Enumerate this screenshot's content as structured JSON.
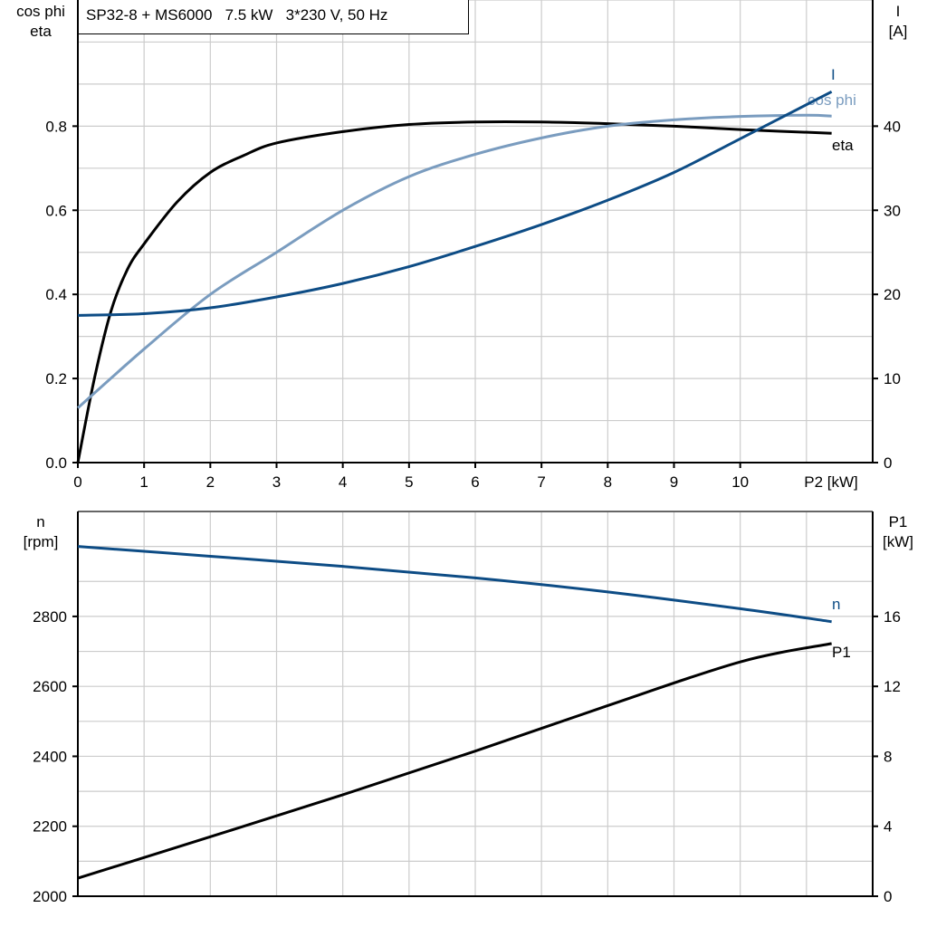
{
  "colors": {
    "eta": "#000000",
    "cos_phi": "#7a9cbf",
    "I": "#0d4c85",
    "n": "#0d4c85",
    "P1": "#000000",
    "grid": "#cccccc"
  },
  "chart_data": [
    {
      "type": "line",
      "title": "SP32-8 + MS6000   7.5 kW   3*230 V, 50 Hz",
      "xlabel": "P2 [kW]",
      "ylabel_left": [
        "cos phi",
        "eta"
      ],
      "ylabel_right": [
        "I",
        "[A]"
      ],
      "xlim": [
        0,
        12
      ],
      "ylim_left": [
        0,
        1.1
      ],
      "ylim_right": [
        0,
        55
      ],
      "grid": true,
      "x_ticks": [
        "0",
        "1",
        "2",
        "3",
        "4",
        "5",
        "6",
        "7",
        "8",
        "9",
        "10"
      ],
      "y_left_ticks": [
        "0.0",
        "0.2",
        "0.4",
        "0.6",
        "0.8"
      ],
      "y_right_ticks": [
        "0",
        "10",
        "20",
        "30",
        "40"
      ],
      "series": [
        {
          "name": "eta",
          "axis": "left",
          "x": [
            0,
            0.25,
            0.5,
            0.75,
            1,
            1.5,
            2,
            2.5,
            3,
            4,
            5,
            6,
            7,
            8,
            9,
            10,
            11.38
          ],
          "y": [
            0,
            0.2,
            0.36,
            0.46,
            0.52,
            0.62,
            0.69,
            0.73,
            0.76,
            0.787,
            0.804,
            0.81,
            0.81,
            0.806,
            0.8,
            0.792,
            0.783
          ]
        },
        {
          "name": "cos phi",
          "axis": "left",
          "x": [
            0,
            1,
            2,
            3,
            4,
            5,
            6,
            7,
            8,
            9,
            10,
            11,
            11.38
          ],
          "y": [
            0.13,
            0.27,
            0.4,
            0.5,
            0.6,
            0.68,
            0.733,
            0.772,
            0.8,
            0.815,
            0.823,
            0.826,
            0.824
          ]
        },
        {
          "name": "I",
          "axis": "right",
          "x": [
            0,
            1,
            2,
            3,
            4,
            5,
            6,
            7,
            8,
            9,
            10,
            11.38
          ],
          "y": [
            17.5,
            17.7,
            18.4,
            19.7,
            21.3,
            23.3,
            25.7,
            28.3,
            31.2,
            34.5,
            38.5,
            44.1
          ]
        }
      ]
    },
    {
      "type": "line",
      "xlim": [
        0,
        12
      ],
      "ylabel_left": [
        "n",
        "[rpm]"
      ],
      "ylabel_right": [
        "P1",
        "[kW]"
      ],
      "ylim_left": [
        2000,
        3100
      ],
      "ylim_right": [
        0,
        22
      ],
      "grid": true,
      "y_left_ticks": [
        "2000",
        "2200",
        "2400",
        "2600",
        "2800"
      ],
      "y_right_ticks": [
        "0",
        "4",
        "8",
        "12",
        "16"
      ],
      "series": [
        {
          "name": "n",
          "axis": "left",
          "x": [
            0,
            2,
            4,
            6,
            8,
            10,
            11.38
          ],
          "y": [
            3000,
            2972,
            2943,
            2910,
            2870,
            2822,
            2785
          ]
        },
        {
          "name": "P1",
          "axis": "right",
          "x": [
            0,
            2,
            4,
            6,
            8,
            10,
            11.38
          ],
          "y": [
            1.03,
            3.4,
            5.8,
            8.3,
            10.9,
            13.4,
            14.45
          ]
        }
      ]
    }
  ]
}
